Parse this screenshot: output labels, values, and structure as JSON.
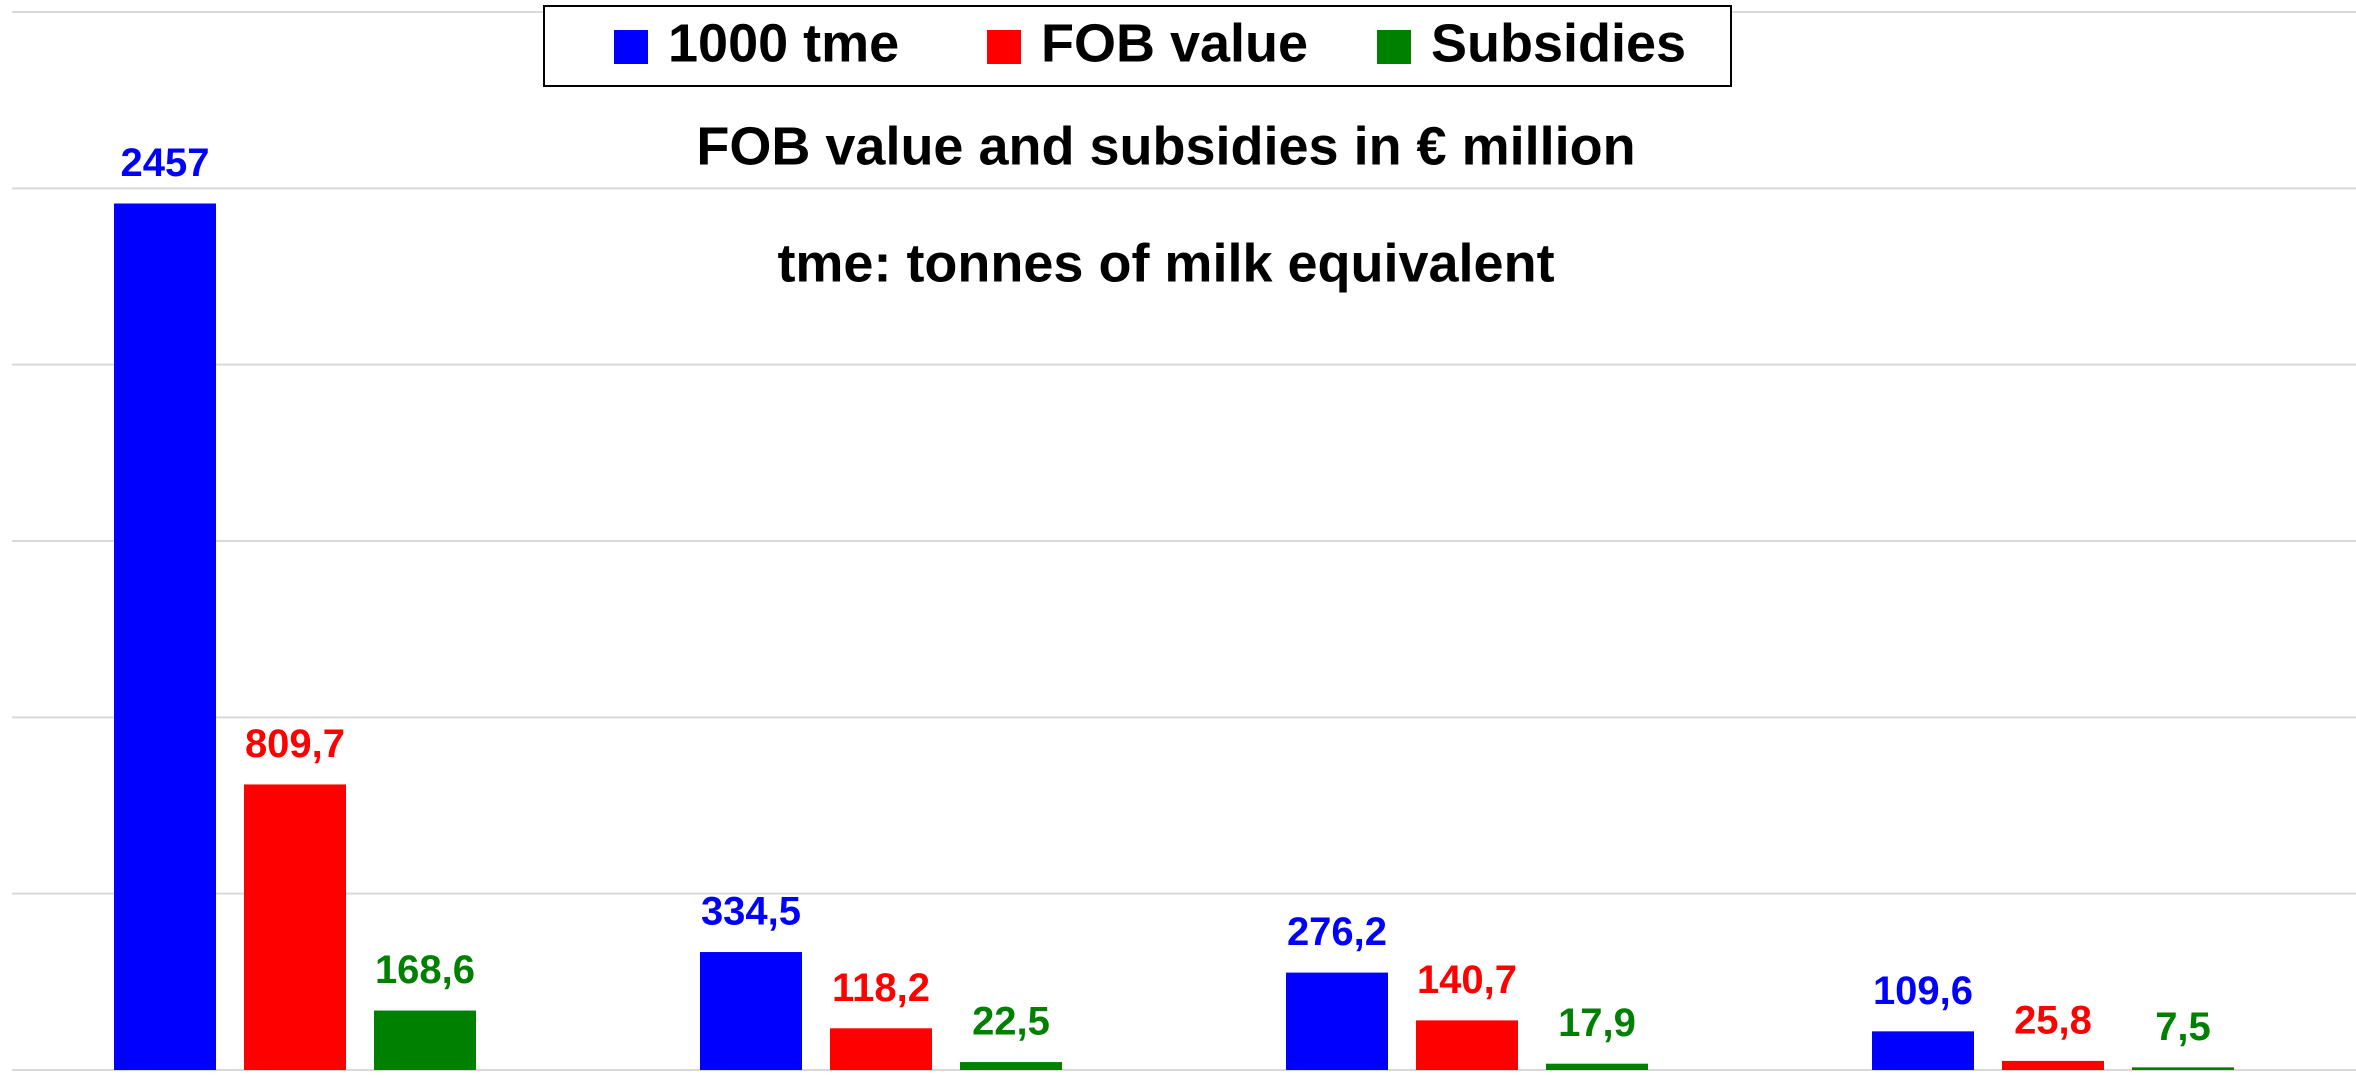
{
  "chart_data": {
    "type": "bar",
    "annotations": [
      "FOB value and subsidies in € million",
      "tme: tonnes of milk equivalent"
    ],
    "categories": [
      null,
      null,
      null,
      null
    ],
    "series": [
      {
        "name": "1000 tme",
        "color": "#0000ff",
        "values": [
          2457,
          334.5,
          276.2,
          109.6
        ],
        "value_labels": [
          "2457",
          "334,5",
          "276,2",
          "109,6"
        ]
      },
      {
        "name": "FOB value",
        "color": "#ff0000",
        "values": [
          809.7,
          118.2,
          140.7,
          25.8
        ],
        "value_labels": [
          "809,7",
          "118,2",
          "140,7",
          "25,8"
        ]
      },
      {
        "name": "Subsidies",
        "color": "#008000",
        "values": [
          168.6,
          22.5,
          17.9,
          7.5
        ],
        "value_labels": [
          "168,6",
          "22,5",
          "17,9",
          "7,5"
        ]
      }
    ],
    "ylim": [
      0,
      3000
    ],
    "yticks": [
      0,
      500,
      1000,
      1500,
      2000,
      2500,
      3000
    ],
    "grid": true,
    "legend": "top"
  }
}
